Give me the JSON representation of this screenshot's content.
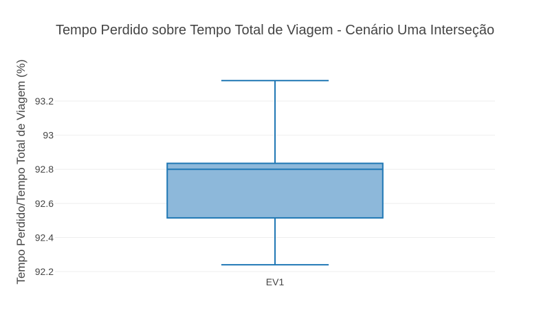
{
  "chart_data": {
    "type": "box",
    "title": "Tempo Perdido sobre Tempo Total de Viagem - Cenário Uma Interseção",
    "xlabel": "",
    "ylabel": "Tempo Perdido/Tempo Total de Viagem (%)",
    "categories": [
      "EV1"
    ],
    "ylim": [
      92.18,
      93.43
    ],
    "yticks": [
      92.2,
      92.4,
      92.6,
      92.8,
      93,
      93.2
    ],
    "ytick_labels": [
      "92.2",
      "92.4",
      "92.6",
      "92.8",
      "93",
      "93.2"
    ],
    "grid": true,
    "boxes": [
      {
        "category": "EV1",
        "min": 92.24,
        "q1": 92.515,
        "median": 92.8,
        "q3": 92.835,
        "max": 93.32
      }
    ],
    "colors": {
      "line": "#1f77b4",
      "fill": "#8db8da",
      "grid": "#eeeeee",
      "text": "#444444"
    }
  }
}
